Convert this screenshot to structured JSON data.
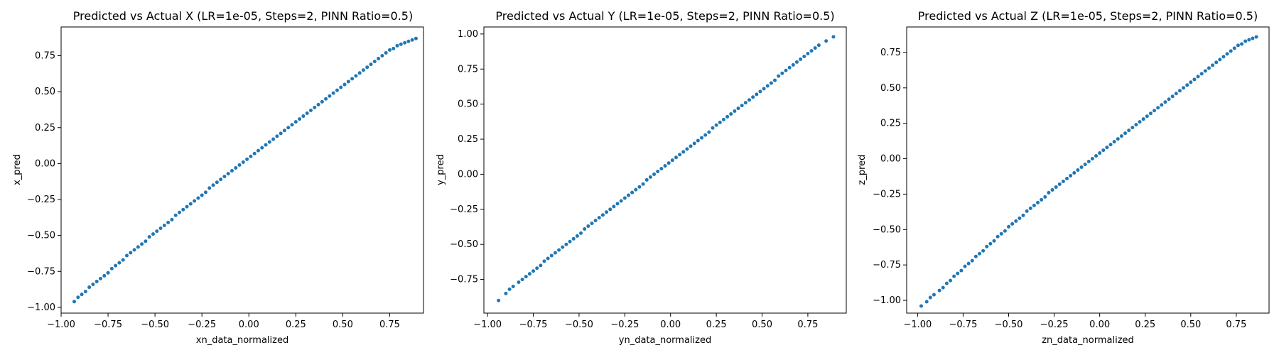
{
  "chart_data": [
    {
      "type": "scatter",
      "title": "Predicted vs Actual X (LR=1e-05, Steps=2, PINN Ratio=0.5)",
      "xlabel": "xn_data_normalized",
      "ylabel": "x_pred",
      "xlim": [
        -1.0,
        0.93
      ],
      "ylim": [
        -1.04,
        0.95
      ],
      "xticks": [
        -1.0,
        -0.75,
        -0.5,
        -0.25,
        0.0,
        0.25,
        0.5,
        0.75
      ],
      "yticks": [
        -1.0,
        -0.75,
        -0.5,
        -0.25,
        0.0,
        0.25,
        0.5,
        0.75
      ],
      "xtick_labels": [
        "−1.00",
        "−0.75",
        "−0.50",
        "−0.25",
        "0.00",
        "0.25",
        "0.50",
        "0.75"
      ],
      "ytick_labels": [
        "−1.00",
        "−0.75",
        "−0.50",
        "−0.25",
        "0.00",
        "0.25",
        "0.50",
        "0.75"
      ],
      "grid": false,
      "series": [
        {
          "color": "#1f77b4",
          "x": [
            -0.93,
            -0.91,
            -0.89,
            -0.87,
            -0.85,
            -0.83,
            -0.81,
            -0.79,
            -0.77,
            -0.75,
            -0.73,
            -0.71,
            -0.69,
            -0.67,
            -0.65,
            -0.63,
            -0.61,
            -0.59,
            -0.57,
            -0.55,
            -0.53,
            -0.51,
            -0.49,
            -0.47,
            -0.45,
            -0.43,
            -0.41,
            -0.39,
            -0.37,
            -0.35,
            -0.33,
            -0.31,
            -0.29,
            -0.27,
            -0.25,
            -0.23,
            -0.21,
            -0.19,
            -0.17,
            -0.15,
            -0.13,
            -0.11,
            -0.09,
            -0.07,
            -0.05,
            -0.03,
            -0.01,
            0.01,
            0.03,
            0.05,
            0.07,
            0.09,
            0.11,
            0.13,
            0.15,
            0.17,
            0.19,
            0.21,
            0.23,
            0.25,
            0.27,
            0.29,
            0.31,
            0.33,
            0.35,
            0.37,
            0.39,
            0.41,
            0.43,
            0.45,
            0.47,
            0.49,
            0.51,
            0.53,
            0.55,
            0.57,
            0.59,
            0.61,
            0.63,
            0.65,
            0.67,
            0.69,
            0.71,
            0.73,
            0.75,
            0.77,
            0.79,
            0.81,
            0.83,
            0.85,
            0.87,
            0.89
          ],
          "y": [
            -0.96,
            -0.93,
            -0.91,
            -0.89,
            -0.86,
            -0.84,
            -0.82,
            -0.8,
            -0.78,
            -0.76,
            -0.73,
            -0.71,
            -0.69,
            -0.67,
            -0.64,
            -0.62,
            -0.6,
            -0.58,
            -0.56,
            -0.54,
            -0.51,
            -0.49,
            -0.47,
            -0.45,
            -0.43,
            -0.41,
            -0.39,
            -0.36,
            -0.34,
            -0.32,
            -0.3,
            -0.28,
            -0.26,
            -0.24,
            -0.22,
            -0.2,
            -0.17,
            -0.15,
            -0.13,
            -0.11,
            -0.09,
            -0.07,
            -0.05,
            -0.03,
            -0.01,
            0.01,
            0.03,
            0.05,
            0.07,
            0.09,
            0.11,
            0.13,
            0.15,
            0.17,
            0.19,
            0.21,
            0.23,
            0.25,
            0.27,
            0.29,
            0.31,
            0.33,
            0.35,
            0.37,
            0.39,
            0.41,
            0.43,
            0.45,
            0.47,
            0.49,
            0.51,
            0.53,
            0.55,
            0.57,
            0.59,
            0.61,
            0.63,
            0.65,
            0.67,
            0.69,
            0.71,
            0.73,
            0.75,
            0.77,
            0.79,
            0.8,
            0.82,
            0.83,
            0.84,
            0.85,
            0.86,
            0.87
          ]
        }
      ]
    },
    {
      "type": "scatter",
      "title": "Predicted vs Actual Y (LR=1e-05, Steps=2, PINN Ratio=0.5)",
      "xlabel": "yn_data_normalized",
      "ylabel": "y_pred",
      "xlim": [
        -1.02,
        0.96
      ],
      "ylim": [
        -0.99,
        1.05
      ],
      "xticks": [
        -1.0,
        -0.75,
        -0.5,
        -0.25,
        0.0,
        0.25,
        0.5,
        0.75
      ],
      "yticks": [
        -0.75,
        -0.5,
        -0.25,
        0.0,
        0.25,
        0.5,
        0.75,
        1.0
      ],
      "xtick_labels": [
        "−1.00",
        "−0.75",
        "−0.50",
        "−0.25",
        "0.00",
        "0.25",
        "0.50",
        "0.75"
      ],
      "ytick_labels": [
        "−0.75",
        "−0.50",
        "−0.25",
        "0.00",
        "0.25",
        "0.50",
        "0.75",
        "1.00"
      ],
      "grid": false,
      "series": [
        {
          "color": "#1f77b4",
          "x": [
            -0.94,
            -0.9,
            -0.88,
            -0.86,
            -0.83,
            -0.81,
            -0.79,
            -0.77,
            -0.75,
            -0.73,
            -0.71,
            -0.69,
            -0.67,
            -0.65,
            -0.63,
            -0.61,
            -0.59,
            -0.57,
            -0.55,
            -0.53,
            -0.51,
            -0.49,
            -0.47,
            -0.45,
            -0.43,
            -0.41,
            -0.39,
            -0.37,
            -0.35,
            -0.33,
            -0.31,
            -0.29,
            -0.27,
            -0.25,
            -0.23,
            -0.21,
            -0.19,
            -0.17,
            -0.15,
            -0.13,
            -0.11,
            -0.09,
            -0.07,
            -0.05,
            -0.03,
            -0.01,
            0.01,
            0.03,
            0.05,
            0.07,
            0.09,
            0.11,
            0.13,
            0.15,
            0.17,
            0.19,
            0.21,
            0.23,
            0.25,
            0.27,
            0.29,
            0.31,
            0.33,
            0.35,
            0.37,
            0.39,
            0.41,
            0.43,
            0.45,
            0.47,
            0.49,
            0.51,
            0.53,
            0.55,
            0.57,
            0.59,
            0.61,
            0.63,
            0.65,
            0.67,
            0.69,
            0.71,
            0.73,
            0.75,
            0.77,
            0.79,
            0.81,
            0.85,
            0.89
          ],
          "y": [
            -0.9,
            -0.85,
            -0.82,
            -0.8,
            -0.77,
            -0.75,
            -0.73,
            -0.71,
            -0.69,
            -0.67,
            -0.65,
            -0.62,
            -0.6,
            -0.58,
            -0.56,
            -0.54,
            -0.52,
            -0.5,
            -0.48,
            -0.46,
            -0.44,
            -0.42,
            -0.39,
            -0.37,
            -0.35,
            -0.33,
            -0.31,
            -0.29,
            -0.27,
            -0.25,
            -0.23,
            -0.21,
            -0.19,
            -0.17,
            -0.15,
            -0.13,
            -0.11,
            -0.09,
            -0.07,
            -0.04,
            -0.02,
            0.0,
            0.02,
            0.04,
            0.06,
            0.08,
            0.1,
            0.12,
            0.14,
            0.16,
            0.18,
            0.2,
            0.22,
            0.24,
            0.26,
            0.28,
            0.3,
            0.33,
            0.35,
            0.37,
            0.39,
            0.41,
            0.43,
            0.45,
            0.47,
            0.49,
            0.51,
            0.53,
            0.55,
            0.57,
            0.59,
            0.61,
            0.63,
            0.65,
            0.67,
            0.7,
            0.72,
            0.74,
            0.76,
            0.78,
            0.8,
            0.82,
            0.84,
            0.86,
            0.88,
            0.9,
            0.92,
            0.95,
            0.98
          ]
        }
      ]
    },
    {
      "type": "scatter",
      "title": "Predicted vs Actual Z (LR=1e-05, Steps=2, PINN Ratio=0.5)",
      "xlabel": "zn_data_normalized",
      "ylabel": "z_pred",
      "xlim": [
        -1.06,
        0.93
      ],
      "ylim": [
        -1.09,
        0.93
      ],
      "xticks": [
        -1.0,
        -0.75,
        -0.5,
        -0.25,
        0.0,
        0.25,
        0.5,
        0.75
      ],
      "yticks": [
        -1.0,
        -0.75,
        -0.5,
        -0.25,
        0.0,
        0.25,
        0.5,
        0.75
      ],
      "xtick_labels": [
        "−1.00",
        "−0.75",
        "−0.50",
        "−0.25",
        "0.00",
        "0.25",
        "0.50",
        "0.75"
      ],
      "ytick_labels": [
        "−1.00",
        "−0.75",
        "−0.50",
        "−0.25",
        "0.00",
        "0.25",
        "0.50",
        "0.75"
      ],
      "grid": false,
      "series": [
        {
          "color": "#1f77b4",
          "x": [
            -0.98,
            -0.95,
            -0.93,
            -0.91,
            -0.88,
            -0.86,
            -0.84,
            -0.82,
            -0.8,
            -0.78,
            -0.76,
            -0.74,
            -0.72,
            -0.7,
            -0.68,
            -0.66,
            -0.64,
            -0.62,
            -0.6,
            -0.58,
            -0.56,
            -0.54,
            -0.52,
            -0.5,
            -0.48,
            -0.46,
            -0.44,
            -0.42,
            -0.4,
            -0.38,
            -0.36,
            -0.34,
            -0.32,
            -0.3,
            -0.28,
            -0.26,
            -0.24,
            -0.22,
            -0.2,
            -0.18,
            -0.16,
            -0.14,
            -0.12,
            -0.1,
            -0.08,
            -0.06,
            -0.04,
            -0.02,
            0.0,
            0.02,
            0.04,
            0.06,
            0.08,
            0.1,
            0.12,
            0.14,
            0.16,
            0.18,
            0.2,
            0.22,
            0.24,
            0.26,
            0.28,
            0.3,
            0.32,
            0.34,
            0.36,
            0.38,
            0.4,
            0.42,
            0.44,
            0.46,
            0.48,
            0.5,
            0.52,
            0.54,
            0.56,
            0.58,
            0.6,
            0.62,
            0.64,
            0.66,
            0.68,
            0.7,
            0.72,
            0.74,
            0.76,
            0.78,
            0.8,
            0.82,
            0.84,
            0.86
          ],
          "y": [
            -1.04,
            -1.01,
            -0.98,
            -0.96,
            -0.93,
            -0.91,
            -0.88,
            -0.86,
            -0.83,
            -0.81,
            -0.79,
            -0.76,
            -0.74,
            -0.72,
            -0.69,
            -0.67,
            -0.65,
            -0.62,
            -0.6,
            -0.58,
            -0.55,
            -0.53,
            -0.51,
            -0.48,
            -0.46,
            -0.44,
            -0.42,
            -0.4,
            -0.37,
            -0.35,
            -0.33,
            -0.31,
            -0.29,
            -0.27,
            -0.24,
            -0.22,
            -0.2,
            -0.18,
            -0.16,
            -0.14,
            -0.12,
            -0.1,
            -0.08,
            -0.06,
            -0.04,
            -0.02,
            0.0,
            0.02,
            0.04,
            0.06,
            0.08,
            0.1,
            0.12,
            0.14,
            0.16,
            0.18,
            0.2,
            0.22,
            0.24,
            0.26,
            0.28,
            0.3,
            0.32,
            0.34,
            0.36,
            0.38,
            0.4,
            0.42,
            0.44,
            0.46,
            0.48,
            0.5,
            0.52,
            0.54,
            0.56,
            0.58,
            0.6,
            0.62,
            0.64,
            0.66,
            0.68,
            0.7,
            0.72,
            0.74,
            0.76,
            0.78,
            0.8,
            0.81,
            0.83,
            0.84,
            0.85,
            0.86
          ]
        }
      ]
    }
  ]
}
